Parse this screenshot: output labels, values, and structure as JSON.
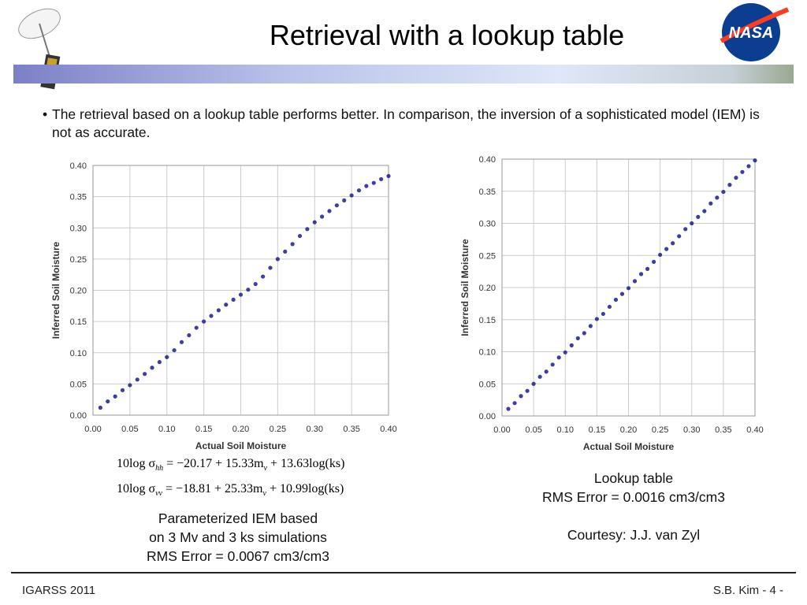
{
  "header": {
    "title": "Retrieval with a lookup table",
    "logo": "NASA"
  },
  "bullet": "The retrieval based on a lookup table performs better. In comparison, the inversion of a sophisticated model (IEM) is not as accurate.",
  "chart_data": [
    {
      "type": "scatter",
      "xlabel": "Actual Soil Moisture",
      "ylabel": "Inferred Soil Moisture",
      "color": "#1c1c8f",
      "grid": true,
      "xlim": [
        0,
        0.4
      ],
      "ylim": [
        0,
        0.4
      ],
      "xticks": [
        {
          "value": 0,
          "label": "0.00"
        },
        0.05,
        {
          "value": 0.1,
          "label": "0.10"
        },
        0.15,
        {
          "value": 0.2,
          "label": "0.20"
        },
        0.25,
        {
          "value": 0.3,
          "label": "0.30"
        },
        0.35,
        {
          "value": 0.4,
          "label": "0.40"
        }
      ],
      "yticks": [
        {
          "value": 0,
          "label": "0.00"
        },
        0.05,
        {
          "value": 0.1,
          "label": "0.10"
        },
        0.15,
        {
          "value": 0.2,
          "label": "0.20"
        },
        0.25,
        {
          "value": 0.3,
          "label": "0.30"
        },
        0.35,
        {
          "value": 0.4,
          "label": "0.40"
        }
      ],
      "x": [
        0.01,
        0.02,
        0.03,
        0.04,
        0.05,
        0.06,
        0.07,
        0.08,
        0.09,
        0.1,
        0.11,
        0.12,
        0.13,
        0.14,
        0.15,
        0.16,
        0.17,
        0.18,
        0.19,
        0.2,
        0.21,
        0.22,
        0.23,
        0.24,
        0.25,
        0.26,
        0.27,
        0.28,
        0.29,
        0.3,
        0.31,
        0.32,
        0.33,
        0.34,
        0.35,
        0.36,
        0.37,
        0.38,
        0.39,
        0.4
      ],
      "y": [
        0.012,
        0.022,
        0.03,
        0.04,
        0.048,
        0.057,
        0.066,
        0.076,
        0.085,
        0.093,
        0.104,
        0.117,
        0.128,
        0.14,
        0.15,
        0.159,
        0.168,
        0.177,
        0.185,
        0.193,
        0.201,
        0.21,
        0.222,
        0.236,
        0.25,
        0.262,
        0.274,
        0.287,
        0.298,
        0.309,
        0.318,
        0.327,
        0.336,
        0.344,
        0.352,
        0.36,
        0.367,
        0.372,
        0.378,
        0.383
      ]
    },
    {
      "type": "scatter",
      "xlabel": "Actual Soil Moisture",
      "ylabel": "Inferred Soil Moisture",
      "color": "#1c1c8f",
      "grid": true,
      "xlim": [
        0,
        0.4
      ],
      "ylim": [
        0,
        0.4
      ],
      "xticks": [
        {
          "value": 0,
          "label": "0.00"
        },
        0.05,
        {
          "value": 0.1,
          "label": "0.10"
        },
        0.15,
        {
          "value": 0.2,
          "label": "0.20"
        },
        0.25,
        {
          "value": 0.3,
          "label": "0.30"
        },
        0.35,
        {
          "value": 0.4,
          "label": "0.40"
        }
      ],
      "yticks": [
        {
          "value": 0,
          "label": "0.00"
        },
        0.05,
        {
          "value": 0.1,
          "label": "0.10"
        },
        0.15,
        {
          "value": 0.2,
          "label": "0.20"
        },
        0.25,
        {
          "value": 0.3,
          "label": "0.30"
        },
        0.35,
        {
          "value": 0.4,
          "label": "0.40"
        }
      ],
      "x": [
        0.01,
        0.02,
        0.03,
        0.04,
        0.05,
        0.06,
        0.07,
        0.08,
        0.09,
        0.1,
        0.11,
        0.12,
        0.13,
        0.14,
        0.15,
        0.16,
        0.17,
        0.18,
        0.19,
        0.2,
        0.21,
        0.22,
        0.23,
        0.24,
        0.25,
        0.26,
        0.27,
        0.28,
        0.29,
        0.3,
        0.31,
        0.32,
        0.33,
        0.34,
        0.35,
        0.36,
        0.37,
        0.38,
        0.39,
        0.4
      ],
      "y": [
        0.011,
        0.02,
        0.031,
        0.039,
        0.05,
        0.061,
        0.069,
        0.08,
        0.091,
        0.099,
        0.11,
        0.121,
        0.129,
        0.14,
        0.151,
        0.159,
        0.17,
        0.181,
        0.19,
        0.199,
        0.21,
        0.221,
        0.229,
        0.24,
        0.251,
        0.26,
        0.269,
        0.28,
        0.291,
        0.3,
        0.31,
        0.319,
        0.331,
        0.34,
        0.349,
        0.36,
        0.371,
        0.38,
        0.389,
        0.398
      ]
    }
  ],
  "equations": [
    [
      {
        "text": "10log σ"
      },
      {
        "text": "hh",
        "sub": true
      },
      {
        "text": " = −20.17 + 15.33m"
      },
      {
        "text": "v",
        "sub": true
      },
      {
        "text": " + 13.63log(ks)"
      }
    ],
    [
      {
        "text": "10log σ"
      },
      {
        "text": "vv",
        "sub": true
      },
      {
        "text": " = −18.81 + 25.33m"
      },
      {
        "text": "v",
        "sub": true
      },
      {
        "text": " + 10.99log(ks)"
      }
    ]
  ],
  "caption_left": [
    "Parameterized IEM based",
    "on 3 Mv and 3 ks simulations",
    "RMS Error = 0.0067 cm3/cm3"
  ],
  "caption_right": [
    "Lookup table",
    "RMS Error = 0.0016 cm3/cm3"
  ],
  "courtesy": "Courtesy: J.J. van Zyl",
  "footer": {
    "left": "IGARSS 2011",
    "right": "S.B. Kim - 4 -"
  }
}
